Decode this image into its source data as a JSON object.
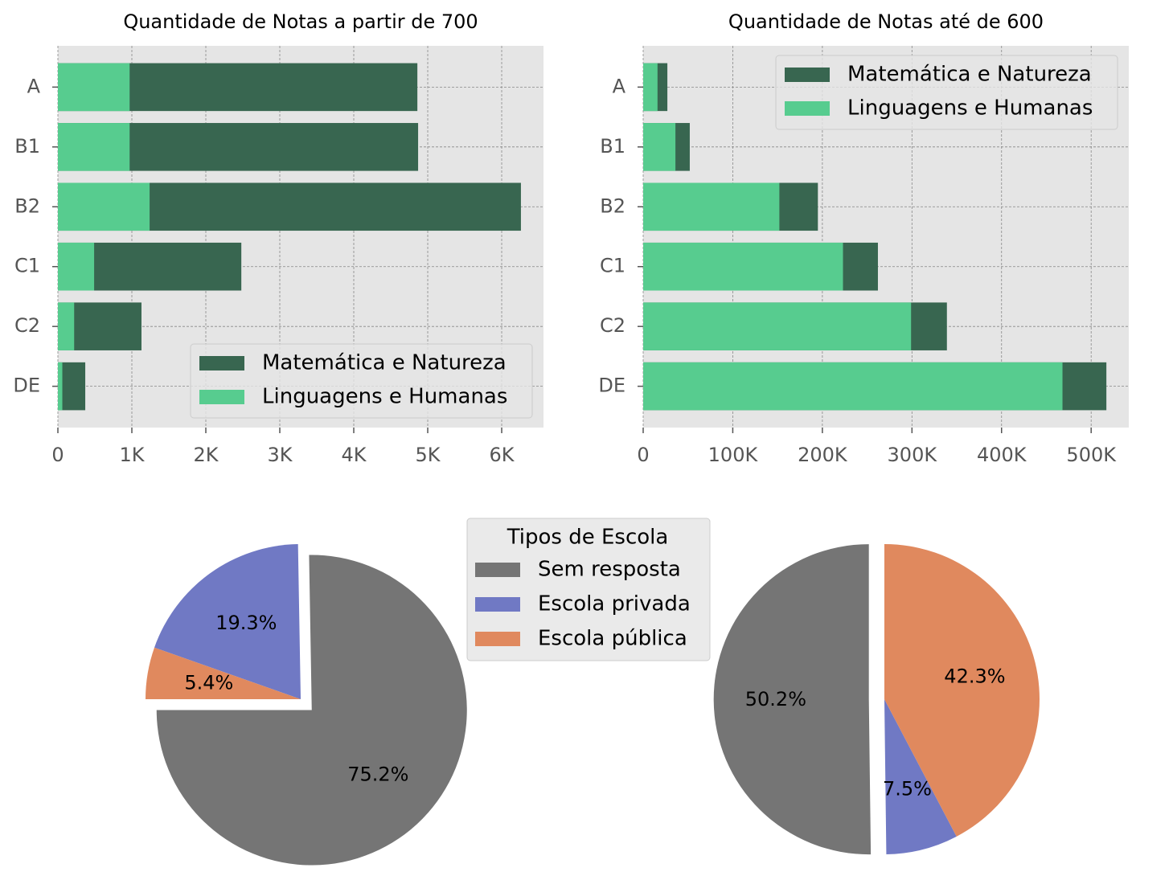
{
  "chart_data": [
    {
      "type": "bar",
      "orientation": "horizontal",
      "overlay": true,
      "title": "Quantidade de Notas a partir de 700",
      "categories": [
        "A",
        "B1",
        "B2",
        "C1",
        "C2",
        "DE"
      ],
      "series": [
        {
          "name": "Matemática e Natureza",
          "color": "#386650",
          "values": [
            4860,
            4870,
            6260,
            2480,
            1130,
            370
          ]
        },
        {
          "name": "Linguagens e Humanas",
          "color": "#57cc8f",
          "values": [
            970,
            970,
            1240,
            490,
            220,
            60
          ]
        }
      ],
      "xlim": [
        0,
        6565
      ],
      "xticks": [
        0,
        {
          "value": 1000,
          "label": "1K"
        },
        {
          "value": 2000,
          "label": "2K"
        },
        {
          "value": 3000,
          "label": "3K"
        },
        {
          "value": 4000,
          "label": "4K"
        },
        {
          "value": 5000,
          "label": "5K"
        },
        {
          "value": 6000,
          "label": "6K"
        }
      ],
      "grid": true,
      "legend": "lower right"
    },
    {
      "type": "bar",
      "orientation": "horizontal",
      "overlay": true,
      "title": "Quantidade de Notas até de 600",
      "categories": [
        "A",
        "B1",
        "B2",
        "C1",
        "C2",
        "DE"
      ],
      "series": [
        {
          "name": "Matemática e Natureza",
          "color": "#386650",
          "values": [
            27000,
            52000,
            195000,
            262000,
            339000,
            517000
          ]
        },
        {
          "name": "Linguagens e Humanas",
          "color": "#57cc8f",
          "values": [
            16000,
            36000,
            152000,
            223000,
            299000,
            468000
          ]
        }
      ],
      "xlim": [
        0,
        542000
      ],
      "xticks": [
        0,
        {
          "value": 100000,
          "label": "100K"
        },
        {
          "value": 200000,
          "label": "200K"
        },
        {
          "value": 300000,
          "label": "300K"
        },
        {
          "value": 400000,
          "label": "400K"
        },
        {
          "value": 500000,
          "label": "500K"
        }
      ],
      "grid": true,
      "legend": "upper right"
    },
    {
      "type": "pie",
      "legend_title": "Tipos de Escola",
      "labels": [
        "Sem resposta",
        "Escola privada",
        "Escola pública"
      ],
      "colors": [
        "#757575",
        "#7079c4",
        "#e0895e"
      ],
      "values": [
        75.2,
        19.3,
        5.4
      ],
      "value_labels": [
        "75.2%",
        "19.3%",
        "5.4%"
      ],
      "startangle": 180,
      "explode": [
        0.1,
        0,
        0
      ]
    },
    {
      "type": "pie",
      "values": [
        50.2,
        7.5,
        42.3
      ],
      "value_labels": [
        "50.2%",
        "7.5%",
        "42.3%"
      ],
      "startangle": 90,
      "explode": [
        0.1,
        0,
        0
      ]
    }
  ]
}
